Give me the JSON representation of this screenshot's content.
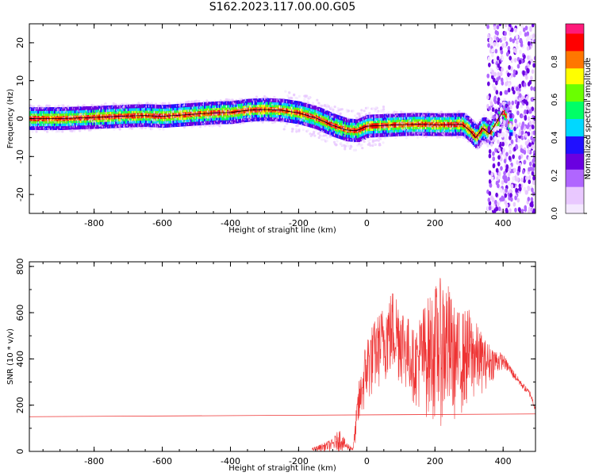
{
  "title": "S162.2023.117.00.00.G05",
  "chart_data": [
    {
      "type": "heatmap",
      "name": "spectrogram",
      "xlabel": "Height of straight line (km)",
      "ylabel": "Frequency (Hz)",
      "xlim": [
        -990,
        495
      ],
      "ylim": [
        -25,
        25
      ],
      "xticks": [
        -800,
        -600,
        -400,
        -200,
        0,
        200,
        400
      ],
      "yticks": [
        -20,
        -10,
        0,
        10,
        20
      ],
      "colorbar": {
        "label": "Normalized spectral amplitude",
        "ticks": [
          "0.0",
          "0.2",
          "0.4",
          "0.6",
          "0.8"
        ],
        "tick_values": [
          0.0,
          0.2,
          0.4,
          0.6,
          0.8
        ],
        "range": [
          0,
          1
        ],
        "colormap": [
          "#f4e8ff",
          "#e9c8ff",
          "#b066ff",
          "#6a00e0",
          "#2010ff",
          "#00d8ff",
          "#00ff66",
          "#6aff00",
          "#ffff00",
          "#ff7700",
          "#ff0000",
          "#ff1a7a"
        ]
      },
      "ridge": {
        "x": [
          -990,
          -900,
          -800,
          -700,
          -650,
          -600,
          -550,
          -500,
          -450,
          -400,
          -350,
          -300,
          -250,
          -200,
          -150,
          -100,
          -60,
          -30,
          0,
          50,
          100,
          150,
          200,
          250,
          280,
          300,
          320,
          340,
          360,
          380,
          400,
          420
        ],
        "y": [
          0.0,
          0.0,
          0.3,
          0.7,
          0.8,
          0.6,
          0.9,
          1.2,
          1.5,
          1.6,
          2.2,
          2.4,
          2.2,
          1.5,
          0.2,
          -1.8,
          -3.0,
          -3.2,
          -2.0,
          -1.8,
          -1.6,
          -1.5,
          -1.6,
          -1.6,
          -1.5,
          -3.0,
          -5.0,
          -2.5,
          -4.0,
          -1.0,
          2.0,
          -2.0
        ]
      }
    },
    {
      "type": "line",
      "name": "snr",
      "xlabel": "Height of straight line (km)",
      "ylabel": "SNR (10 * v/v)",
      "xlim": [
        -990,
        495
      ],
      "ylim": [
        0,
        820
      ],
      "xticks": [
        -800,
        -600,
        -400,
        -200,
        0,
        200,
        400
      ],
      "yticks": [
        0,
        200,
        400,
        600,
        800
      ],
      "line_color": "#ee3333",
      "reference_line": {
        "x": [
          -990,
          495
        ],
        "y": [
          150,
          162
        ]
      },
      "envelope": {
        "x": [
          -160,
          -100,
          -80,
          -60,
          -40,
          -25,
          -15,
          0,
          20,
          50,
          80,
          100,
          140,
          160,
          200,
          230,
          260,
          300,
          350,
          400,
          450,
          480,
          495
        ],
        "low": [
          0,
          0,
          0,
          0,
          0,
          70,
          140,
          180,
          240,
          290,
          300,
          280,
          200,
          150,
          120,
          100,
          130,
          180,
          270,
          360,
          280,
          230,
          170
        ],
        "high": [
          15,
          55,
          100,
          40,
          20,
          290,
          360,
          520,
          560,
          640,
          720,
          660,
          520,
          620,
          720,
          780,
          610,
          620,
          480,
          420,
          310,
          260,
          200
        ]
      }
    }
  ]
}
